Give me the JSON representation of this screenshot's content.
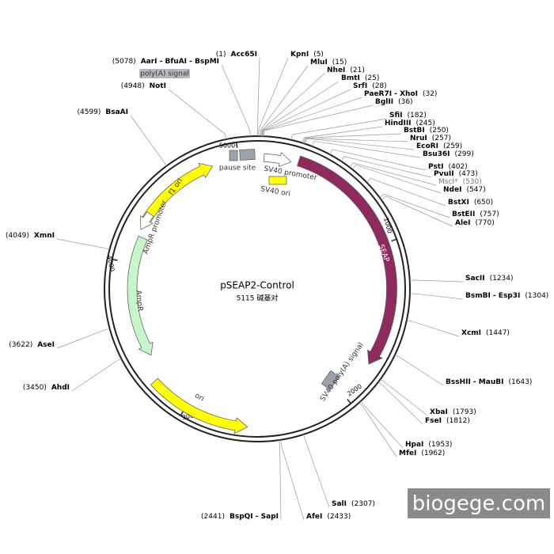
{
  "title": "pSEAP2-Control",
  "subtitle": "5115 碱基对",
  "total_length": 5115,
  "ticks": [
    1000,
    2000,
    3000,
    4000,
    5000
  ],
  "features": [
    {
      "label": "SEAP"
    },
    {
      "label": "f1 ori"
    },
    {
      "label": "AmpR promoter"
    },
    {
      "label": "AmpR"
    },
    {
      "label": "ori"
    },
    {
      "label": "SV40 promoter"
    },
    {
      "label": "SV40 ori"
    },
    {
      "label": "pause site"
    },
    {
      "label": "SV40 poly(A) signal"
    },
    {
      "label": "poly(A) signal"
    }
  ],
  "sites": [
    {
      "name": "Acc65I",
      "position": {
        "value": 1,
        "label": "(1)"
      }
    },
    {
      "name": "AarI - BfuAI - BspMI",
      "position": {
        "value": 5078,
        "label": "(5078)"
      }
    },
    {
      "name": "NotI",
      "position": {
        "value": 4948,
        "label": "(4948)"
      }
    },
    {
      "name": "BsaAI",
      "position": {
        "value": 4599,
        "label": "(4599)"
      }
    },
    {
      "name": "KpnI",
      "position": {
        "value": 5,
        "label": "(5)"
      }
    },
    {
      "name": "MluI",
      "position": {
        "value": 15,
        "label": "(15)"
      }
    },
    {
      "name": "NheI",
      "position": {
        "value": 21,
        "label": "(21)"
      }
    },
    {
      "name": "BmtI",
      "position": {
        "value": 25,
        "label": "(25)"
      }
    },
    {
      "name": "SrfI",
      "position": {
        "value": 28,
        "label": "(28)"
      }
    },
    {
      "name": "PaeR7I - XhoI",
      "position": {
        "value": 32,
        "label": "(32)"
      }
    },
    {
      "name": "BglII",
      "position": {
        "value": 36,
        "label": "(36)"
      }
    },
    {
      "name": "SfiI",
      "position": {
        "value": 182,
        "label": "(182)"
      }
    },
    {
      "name": "HindIII",
      "position": {
        "value": 245,
        "label": "(245)"
      }
    },
    {
      "name": "BstBI",
      "position": {
        "value": 250,
        "label": "(250)"
      }
    },
    {
      "name": "NruI",
      "position": {
        "value": 257,
        "label": "(257)"
      }
    },
    {
      "name": "EcoRI",
      "position": {
        "value": 259,
        "label": "(259)"
      }
    },
    {
      "name": "Bsu36I",
      "position": {
        "value": 299,
        "label": "(299)"
      }
    },
    {
      "name": "PstI",
      "position": {
        "value": 402,
        "label": "(402)"
      }
    },
    {
      "name": "PvuII",
      "position": {
        "value": 473,
        "label": "(473)"
      }
    },
    {
      "name": "MscI*",
      "position": {
        "value": 530,
        "label": "(530)"
      }
    },
    {
      "name": "NdeI",
      "position": {
        "value": 547,
        "label": "(547)"
      }
    },
    {
      "name": "BstXI",
      "position": {
        "value": 650,
        "label": "(650)"
      }
    },
    {
      "name": "BstEII",
      "position": {
        "value": 757,
        "label": "(757)"
      }
    },
    {
      "name": "AleI",
      "position": {
        "value": 770,
        "label": "(770)"
      }
    },
    {
      "name": "SacII",
      "position": {
        "value": 1234,
        "label": "(1234)"
      }
    },
    {
      "name": "BsmBI - Esp3I",
      "position": {
        "value": 1304,
        "label": "(1304)"
      }
    },
    {
      "name": "XcmI",
      "position": {
        "value": 1447,
        "label": "(1447)"
      }
    },
    {
      "name": "BssHII - MauBI",
      "position": {
        "value": 1643,
        "label": "(1643)"
      }
    },
    {
      "name": "XbaI",
      "position": {
        "value": 1793,
        "label": "(1793)"
      }
    },
    {
      "name": "FseI",
      "position": {
        "value": 1812,
        "label": "(1812)"
      }
    },
    {
      "name": "HpaI",
      "position": {
        "value": 1953,
        "label": "(1953)"
      }
    },
    {
      "name": "MfeI",
      "position": {
        "value": 1962,
        "label": "(1962)"
      }
    },
    {
      "name": "SalI",
      "position": {
        "value": 2307,
        "label": "(2307)"
      }
    },
    {
      "name": "AfeI",
      "position": {
        "value": 2433,
        "label": "(2433)"
      }
    },
    {
      "name": "BspQI - SapI",
      "position": {
        "value": 2441,
        "label": "(2441)"
      }
    },
    {
      "name": "AhdI",
      "position": {
        "value": 3450,
        "label": "(3450)"
      }
    },
    {
      "name": "AseI",
      "position": {
        "value": 3622,
        "label": "(3622)"
      }
    },
    {
      "name": "XmnI",
      "position": {
        "value": 4049,
        "label": "(4049)"
      }
    }
  ],
  "watermark": "biogege.com"
}
